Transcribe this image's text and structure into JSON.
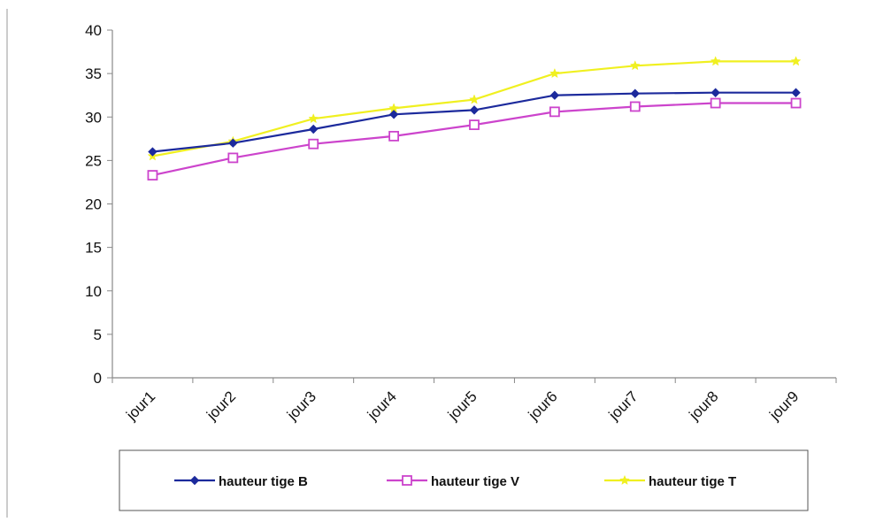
{
  "chart_data": {
    "type": "line",
    "categories": [
      "jour1",
      "jour2",
      "jour3",
      "jour4",
      "jour5",
      "jour6",
      "jour7",
      "jour8",
      "jour9"
    ],
    "ylim": [
      0,
      40
    ],
    "yticks": [
      "0",
      "5",
      "10",
      "15",
      "20",
      "25",
      "30",
      "35",
      "40"
    ],
    "grid": false,
    "legend_position": "bottom",
    "series": [
      {
        "name": "hauteur tige  B",
        "color": "#1c2a9c",
        "marker": "diamond",
        "values": [
          26.0,
          27.0,
          28.6,
          30.3,
          30.8,
          32.5,
          32.7,
          32.8,
          32.8
        ]
      },
      {
        "name": "hauteur tige  V",
        "color": "#cc44cc",
        "marker": "square-open",
        "values": [
          23.3,
          25.3,
          26.9,
          27.8,
          29.1,
          30.6,
          31.2,
          31.6,
          31.6
        ]
      },
      {
        "name": "hauteur tige  T",
        "color": "#f0f020",
        "marker": "star",
        "values": [
          25.5,
          27.2,
          29.8,
          31.0,
          32.0,
          35.0,
          35.9,
          36.4,
          36.4
        ]
      }
    ]
  }
}
